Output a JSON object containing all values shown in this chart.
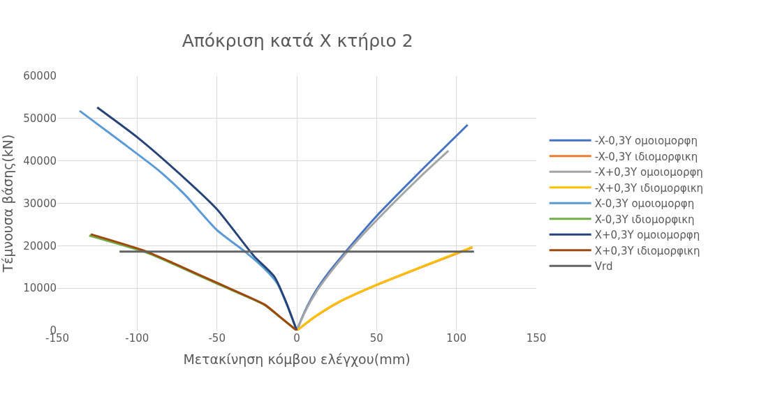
{
  "chart_data": {
    "type": "line",
    "title": "Απόκριση κατά X κτήριο 2",
    "xlabel": "Μετακίνηση κόμβου ελέγχου(mm)",
    "ylabel": "Τέμνουσα βάσης(kN)",
    "xlim": [
      -150,
      150
    ],
    "xticks": [
      -150,
      -100,
      -50,
      0,
      50,
      100,
      150
    ],
    "ylim": [
      0,
      60000
    ],
    "yticks": [
      0,
      10000,
      20000,
      30000,
      40000,
      50000,
      60000
    ],
    "grid": true,
    "legend": "right",
    "marker": "none",
    "line_style": "solid",
    "series": [
      {
        "name": "-X-0,3Y ομοιομορφη",
        "color": "#4472c4",
        "x": [
          0,
          5,
          12,
          20,
          31,
          50,
          80,
          107
        ],
        "values": [
          0,
          4500,
          9400,
          13700,
          18750,
          27000,
          38500,
          48500
        ]
      },
      {
        "name": "-X-0,3Y ιδιομορφικη",
        "color": "#ed7d31",
        "x": [
          0,
          12,
          27,
          50,
          80,
          110
        ],
        "values": [
          0,
          3400,
          6850,
          10750,
          15250,
          19600
        ]
      },
      {
        "name": "-X+0,3Y ομοιομορφη",
        "color": "#a5a5a5",
        "x": [
          0,
          5,
          12,
          20,
          31,
          50,
          80,
          95
        ],
        "values": [
          0,
          4300,
          9000,
          13200,
          18300,
          26000,
          37200,
          42400
        ]
      },
      {
        "name": "-X+0,3Y ιδιομορφικη",
        "color": "#ffc000",
        "x": [
          0,
          12,
          27,
          50,
          80,
          110
        ],
        "values": [
          0,
          3450,
          6900,
          10800,
          15300,
          19700
        ]
      },
      {
        "name": "X-0,3Y ομοιομορφη",
        "color": "#5b9bd5",
        "x": [
          -136,
          -110,
          -87,
          -70,
          -50,
          -31,
          -20,
          -12,
          -5,
          0
        ],
        "values": [
          51800,
          44500,
          37900,
          32000,
          23700,
          18200,
          14500,
          11000,
          5000,
          0
        ]
      },
      {
        "name": "X-0,3Y ιδιομορφικη",
        "color": "#70ad47",
        "x": [
          -130,
          -95,
          -75,
          -49,
          -30,
          -20,
          -11,
          0
        ],
        "values": [
          22400,
          18500,
          15300,
          10900,
          7800,
          6000,
          3300,
          0
        ]
      },
      {
        "name": "X+0,3Y ομοιομορφη",
        "color": "#264478",
        "x": [
          -125,
          -100,
          -75,
          -50,
          -27,
          -14,
          -7,
          0
        ],
        "values": [
          52600,
          45600,
          37500,
          28600,
          17650,
          12700,
          7000,
          0
        ]
      },
      {
        "name": "X+0,3Y ιδιομορφικη",
        "color": "#9e480e",
        "x": [
          -129,
          -95,
          -75,
          -49,
          -30,
          -20,
          -11,
          0
        ],
        "values": [
          22700,
          18750,
          15500,
          11100,
          7900,
          6100,
          3400,
          0
        ]
      },
      {
        "name": "Vrd",
        "color": "#636363",
        "x": [
          -111,
          111
        ],
        "values": [
          18600,
          18600
        ]
      }
    ]
  }
}
